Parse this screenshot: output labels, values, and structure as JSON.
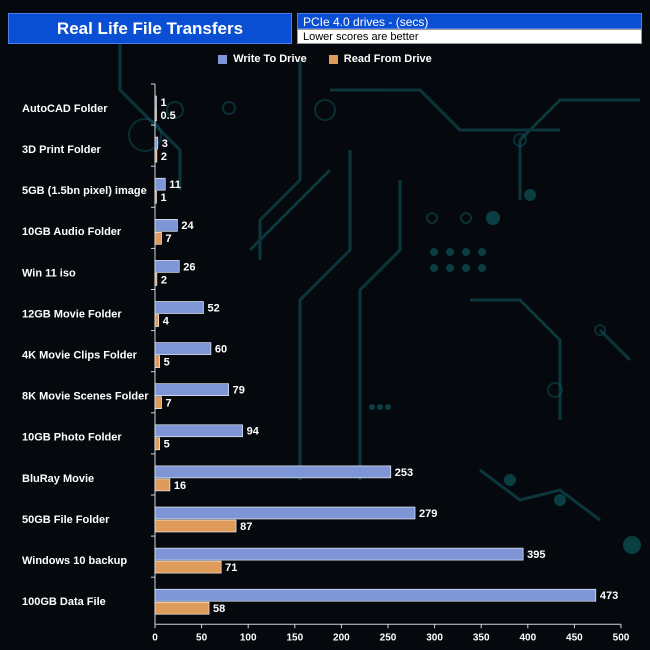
{
  "chart_data": {
    "type": "bar",
    "orientation": "horizontal",
    "title": "Real Life File Transfers",
    "subtitle": "PCIe 4.0 drives - (secs)",
    "note": "Lower scores are better",
    "categories": [
      "AutoCAD Folder",
      "3D Print Folder",
      "5GB (1.5bn pixel) image",
      "10GB Audio Folder",
      "Win 11 iso",
      "12GB Movie Folder",
      "4K Movie Clips Folder",
      "8K Movie Scenes Folder",
      "10GB Photo Folder",
      "BluRay Movie",
      "50GB File Folder",
      "Windows 10 backup",
      "100GB Data File"
    ],
    "series": [
      {
        "name": "Write To  Drive",
        "color": "#7e96d6",
        "values": [
          1,
          3,
          11,
          24,
          26,
          52,
          60,
          79,
          94,
          253,
          279,
          395,
          473
        ]
      },
      {
        "name": "Read From  Drive",
        "color": "#df9b5c",
        "values": [
          0.5,
          2,
          1,
          7,
          2,
          4,
          5,
          7,
          5,
          16,
          87,
          71,
          58
        ]
      }
    ],
    "xlim": [
      0,
      500
    ],
    "xticks": [
      0,
      50,
      100,
      150,
      200,
      250,
      300,
      350,
      400,
      450,
      500
    ],
    "legend_position": "top-center",
    "grid": false
  }
}
